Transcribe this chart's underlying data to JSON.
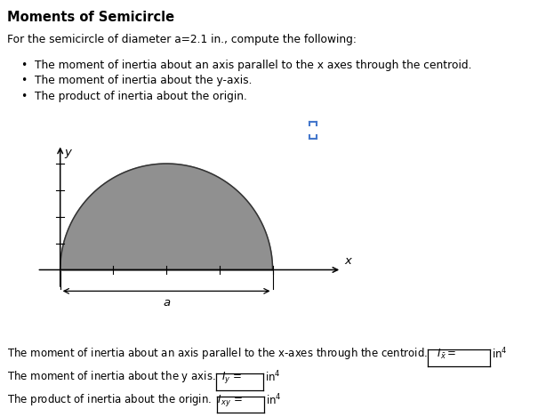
{
  "title": "Moments of Semicircle",
  "intro_text": "For the semicircle of diameter a=2.1 in., compute the following:",
  "bullet1": "The moment of inertia about an axis parallel to the x axes through the centroid.",
  "bullet2": "The moment of inertia about the y-axis.",
  "bullet3": "The product of inertia about the origin.",
  "semicircle_color": "#909090",
  "semicircle_edge_color": "#333333",
  "axis_color": "#000000",
  "label_x": "x",
  "label_y": "y",
  "label_a": "a",
  "line1": "The moment of inertia about an axis parallel to the x-axes through the centroid.",
  "line2": "The moment of inertia about the y axis.",
  "line3": "The product of inertia about the origin.",
  "background_color": "#ffffff",
  "icon_color": "#4477cc"
}
